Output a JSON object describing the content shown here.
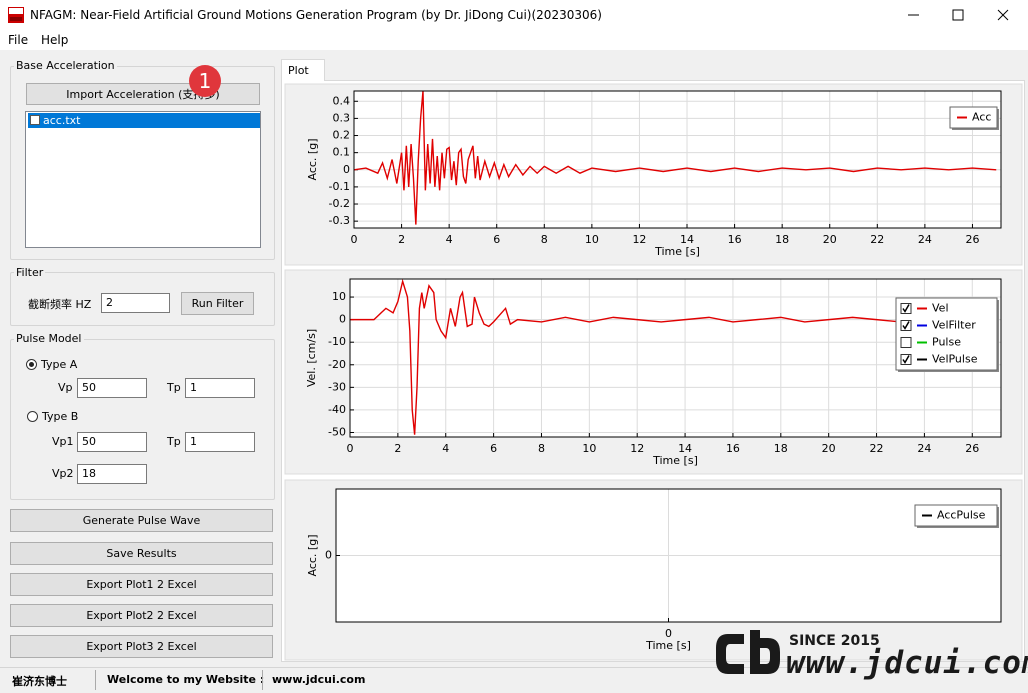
{
  "window": {
    "title": "NFAGM: Near-Field Artificial Ground Motions Generation Program (by Dr. JiDong Cui)(20230306)"
  },
  "menu": [
    "File",
    "Help"
  ],
  "base_acceleration": {
    "title": "Base Acceleration",
    "import_button": "Import Acceleration (支持多)",
    "badge": "1",
    "files": [
      {
        "name": "acc.txt",
        "checked": false,
        "selected": true
      }
    ]
  },
  "filter": {
    "title": "Filter",
    "label": "截断频率 HZ",
    "value": 2,
    "button": "Run Filter"
  },
  "pulse_model": {
    "title": "Pulse Model",
    "type_a": {
      "label": "Type A",
      "selected": true,
      "vp_label": "Vp",
      "vp": 50,
      "tp_label": "Tp",
      "tp": 1
    },
    "type_b": {
      "label": "Type B",
      "selected": false,
      "vp1_label": "Vp1",
      "vp1": 50,
      "tp_label": "Tp",
      "tp": 1,
      "vp2_label": "Vp2",
      "vp2": 18
    }
  },
  "buttons": [
    "Generate Pulse Wave",
    "Save Results",
    "Export Plot1 2 Excel",
    "Export Plot2 2 Excel",
    "Export Plot3 2 Excel"
  ],
  "tab": "Plot",
  "status": [
    "崔济东博士",
    "Welcome to my Website :",
    "www.jdcui.com"
  ],
  "watermark": {
    "since": "SINCE 2015",
    "url": "www.jdcui.com"
  },
  "chart_data": [
    {
      "type": "line",
      "xlabel": "Time [s]",
      "ylabel": "Acc. [g]",
      "xlim": [
        0,
        27.2
      ],
      "ylim": [
        -0.34,
        0.46
      ],
      "xticks": [
        0,
        2,
        4,
        6,
        8,
        10,
        12,
        14,
        16,
        18,
        20,
        22,
        24,
        26
      ],
      "yticks": [
        -0.3,
        -0.2,
        -0.1,
        0,
        0.1,
        0.2,
        0.3,
        0.4
      ],
      "grid": true,
      "legend": "upper right",
      "x": [
        0,
        0.5,
        1,
        1.2,
        1.4,
        1.6,
        1.8,
        2.0,
        2.1,
        2.2,
        2.3,
        2.4,
        2.5,
        2.6,
        2.7,
        2.8,
        2.9,
        3.0,
        3.1,
        3.2,
        3.3,
        3.4,
        3.5,
        3.6,
        3.7,
        3.8,
        3.9,
        4.0,
        4.1,
        4.2,
        4.3,
        4.4,
        4.5,
        4.6,
        4.7,
        4.8,
        5.0,
        5.1,
        5.2,
        5.3,
        5.5,
        5.7,
        5.9,
        6.1,
        6.3,
        6.5,
        6.8,
        7.1,
        7.4,
        7.7,
        8.0,
        8.5,
        9.0,
        9.5,
        10,
        11,
        12,
        13,
        14,
        15,
        16,
        17,
        18,
        19,
        20,
        21,
        22,
        23,
        24,
        25,
        26,
        27
      ],
      "series": [
        {
          "name": "Acc",
          "color": "#e00000",
          "values": [
            0,
            0.01,
            -0.02,
            0.04,
            -0.05,
            0.06,
            -0.08,
            0.1,
            -0.12,
            0.14,
            -0.1,
            0.15,
            -0.05,
            -0.32,
            0.05,
            0.3,
            0.46,
            -0.12,
            0.15,
            -0.08,
            0.18,
            -0.1,
            0.08,
            -0.12,
            0.1,
            -0.05,
            0.12,
            0.13,
            -0.06,
            0.05,
            -0.09,
            0.1,
            0.12,
            -0.04,
            -0.08,
            0.06,
            0.14,
            -0.05,
            0.08,
            -0.06,
            0.05,
            -0.04,
            0.04,
            -0.05,
            0.03,
            -0.04,
            0.03,
            -0.03,
            0.02,
            -0.02,
            0.02,
            -0.02,
            0.02,
            -0.02,
            0.01,
            -0.01,
            0.01,
            -0.01,
            0.01,
            -0.01,
            0.01,
            -0.01,
            0.01,
            0,
            0.01,
            -0.01,
            0.01,
            0,
            0.01,
            0,
            0.01,
            0
          ]
        }
      ]
    },
    {
      "type": "line",
      "xlabel": "Time [s]",
      "ylabel": "Vel. [cm/s]",
      "xlim": [
        0,
        27.2
      ],
      "ylim": [
        -52,
        18
      ],
      "xticks": [
        0,
        2,
        4,
        6,
        8,
        10,
        12,
        14,
        16,
        18,
        20,
        22,
        24,
        26
      ],
      "yticks": [
        -50,
        -40,
        -30,
        -20,
        -10,
        0,
        10
      ],
      "grid": true,
      "legend": "upper right",
      "x": [
        0,
        1,
        1.2,
        1.5,
        1.8,
        2.0,
        2.2,
        2.4,
        2.5,
        2.6,
        2.7,
        2.8,
        2.9,
        3.0,
        3.1,
        3.3,
        3.5,
        3.6,
        3.8,
        4.0,
        4.2,
        4.4,
        4.6,
        4.7,
        4.9,
        5.1,
        5.2,
        5.4,
        5.6,
        5.8,
        6.0,
        6.5,
        6.7,
        7.0,
        8,
        9,
        10,
        11,
        12,
        13,
        14,
        15,
        16,
        17,
        18,
        19,
        20,
        21,
        22,
        23,
        24,
        25,
        26,
        27
      ],
      "series": [
        {
          "name": "Vel",
          "color": "#e00000",
          "checked": true,
          "values": [
            0,
            0,
            2,
            5,
            3,
            8,
            17,
            10,
            -5,
            -40,
            -51,
            -30,
            5,
            12,
            5,
            15,
            12,
            0,
            -5,
            -8,
            5,
            -3,
            10,
            12,
            -3,
            -2,
            10,
            3,
            -2,
            -3,
            -1,
            5,
            -2,
            0,
            -1,
            1,
            -1,
            1,
            0,
            -1,
            0,
            1,
            -1,
            0,
            1,
            -1,
            0,
            1,
            0,
            -1,
            0,
            0,
            0,
            0
          ]
        },
        {
          "name": "VelFilter",
          "color": "#0000e0",
          "checked": true
        },
        {
          "name": "Pulse",
          "color": "#00c000",
          "checked": false
        },
        {
          "name": "VelPulse",
          "color": "#000000",
          "checked": true
        }
      ]
    },
    {
      "type": "line",
      "xlabel": "Time [s]",
      "ylabel": "Acc. [g]",
      "xlim": [
        -1,
        1
      ],
      "ylim": [
        -1,
        1
      ],
      "xticks": [
        0
      ],
      "yticks": [
        0
      ],
      "grid": true,
      "legend": "upper right",
      "series": [
        {
          "name": "AccPulse",
          "color": "#000000"
        }
      ]
    }
  ]
}
